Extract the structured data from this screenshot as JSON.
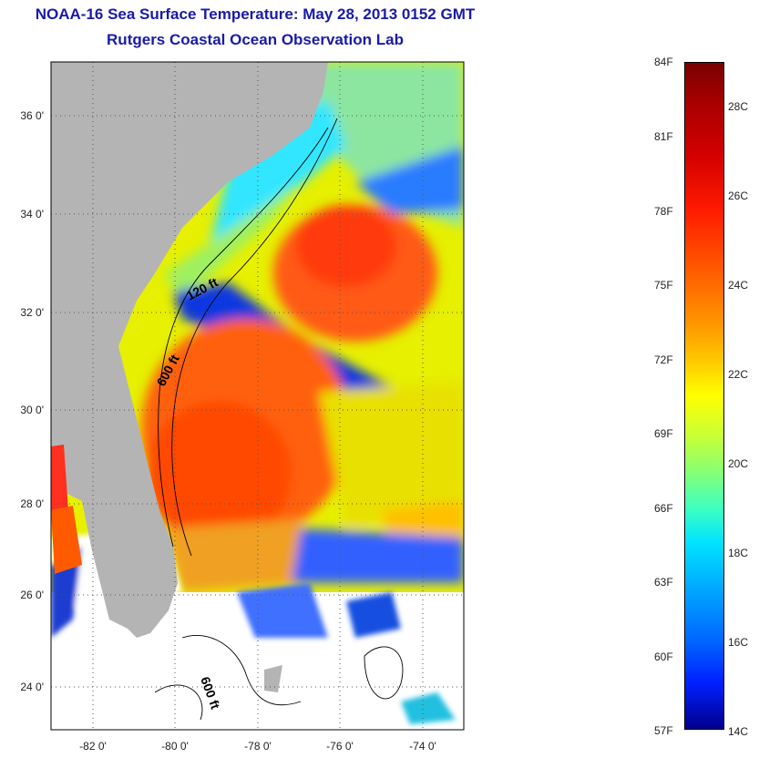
{
  "header": {
    "title": "NOAA-16 Sea Surface Temperature:  May 28, 2013 0152 GMT",
    "subtitle": "Rutgers Coastal Ocean Observation Lab"
  },
  "map": {
    "lat_ticks": [
      "36 0'",
      "34 0'",
      "32 0'",
      "30 0'",
      "28 0'",
      "26 0'",
      "24 0'"
    ],
    "lon_ticks": [
      "-82 0'",
      "-80 0'",
      "-78 0'",
      "-76 0'",
      "-74 0'"
    ],
    "contour_labels": [
      "120 ft",
      "600 ft",
      "600 ft"
    ],
    "land_color": "#b4b4b4",
    "nodata_color": "#ffffff"
  },
  "colorbar": {
    "fahrenheit_labels": [
      "84F",
      "81F",
      "78F",
      "75F",
      "72F",
      "69F",
      "66F",
      "63F",
      "60F",
      "57F"
    ],
    "celsius_labels": [
      "28C",
      "26C",
      "24C",
      "22C",
      "20C",
      "18C",
      "16C",
      "14C"
    ],
    "scale": "jet"
  }
}
